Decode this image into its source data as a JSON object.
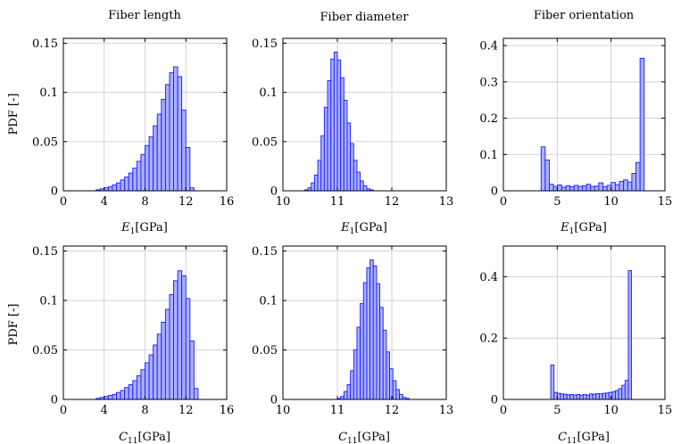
{
  "column_titles": [
    "Fiber length",
    "Fiber diameter",
    "Fiber orientation"
  ],
  "ylabel": "PDF [-]",
  "xlabel_top": {
    "symbol": "E",
    "sub": "1",
    "unit": "[GPa]"
  },
  "xlabel_bottom": {
    "symbol": "C",
    "sub": "11",
    "unit": "[GPa]"
  },
  "colors": {
    "bar_fill": "#aab0ff",
    "bar_edge": "#1a1aff",
    "grid": "#c8c8c8",
    "axis": "#000000"
  },
  "chart_data": [
    {
      "id": "length-E1",
      "type": "bar",
      "title": "Fiber length",
      "xlabel": "E1 [GPa]",
      "ylabel": "PDF [-]",
      "xlim": [
        0,
        16
      ],
      "ylim": [
        0,
        0.155
      ],
      "xticks": [
        0,
        4,
        8,
        12,
        16
      ],
      "yticks": [
        0,
        0.05,
        0.1,
        0.15
      ],
      "xtick_labels": [
        "0",
        "4",
        "8",
        "12",
        "16"
      ],
      "ytick_labels": [
        "0",
        "0.05",
        "0.1",
        "0.15"
      ],
      "bin_start": 3.2,
      "bin_width": 0.4,
      "values": [
        0.001,
        0.002,
        0.003,
        0.004,
        0.006,
        0.008,
        0.011,
        0.014,
        0.018,
        0.023,
        0.03,
        0.037,
        0.046,
        0.055,
        0.066,
        0.078,
        0.093,
        0.108,
        0.12,
        0.126,
        0.116,
        0.082,
        0.044,
        0.003
      ],
      "grid": true
    },
    {
      "id": "diameter-E1",
      "type": "bar",
      "title": "Fiber diameter",
      "xlabel": "E1 [GPa]",
      "ylabel": "",
      "xlim": [
        10,
        13
      ],
      "ylim": [
        0,
        0.155
      ],
      "xticks": [
        10,
        11,
        12,
        13
      ],
      "yticks": [
        0,
        0.05,
        0.1,
        0.15
      ],
      "xtick_labels": [
        "10",
        "11",
        "12",
        "13"
      ],
      "ytick_labels": [
        "0",
        "0.05",
        "0.1",
        "0.15"
      ],
      "bin_start": 10.4,
      "bin_width": 0.06,
      "values": [
        0.001,
        0.003,
        0.008,
        0.016,
        0.031,
        0.056,
        0.085,
        0.112,
        0.134,
        0.141,
        0.133,
        0.115,
        0.092,
        0.069,
        0.048,
        0.031,
        0.019,
        0.01,
        0.005,
        0.002,
        0.001
      ],
      "grid": true
    },
    {
      "id": "orientation-E1",
      "type": "bar",
      "title": "Fiber orientation",
      "xlabel": "E1 [GPa]",
      "ylabel": "",
      "xlim": [
        0,
        15
      ],
      "ylim": [
        0,
        0.42
      ],
      "xticks": [
        0,
        5,
        10,
        15
      ],
      "yticks": [
        0,
        0.1,
        0.2,
        0.3,
        0.4
      ],
      "xtick_labels": [
        "0",
        "5",
        "10",
        "15"
      ],
      "ytick_labels": [
        "0",
        "0.1",
        "0.2",
        "0.3",
        "0.4"
      ],
      "bin_start": 3.5,
      "bin_width": 0.383,
      "values": [
        0.121,
        0.085,
        0.018,
        0.012,
        0.016,
        0.01,
        0.014,
        0.011,
        0.015,
        0.012,
        0.014,
        0.018,
        0.012,
        0.013,
        0.022,
        0.011,
        0.015,
        0.023,
        0.017,
        0.026,
        0.03,
        0.024,
        0.048,
        0.078,
        0.365
      ],
      "grid": true
    },
    {
      "id": "length-C11",
      "type": "bar",
      "title": "",
      "xlabel": "C11 [GPa]",
      "ylabel": "PDF [-]",
      "xlim": [
        0,
        16
      ],
      "ylim": [
        0,
        0.155
      ],
      "xticks": [
        0,
        4,
        8,
        12,
        16
      ],
      "yticks": [
        0,
        0.05,
        0.1,
        0.15
      ],
      "xtick_labels": [
        "0",
        "4",
        "8",
        "12",
        "16"
      ],
      "ytick_labels": [
        "0",
        "0.05",
        "0.1",
        "0.15"
      ],
      "bin_start": 3.2,
      "bin_width": 0.4,
      "values": [
        0.001,
        0.002,
        0.003,
        0.004,
        0.005,
        0.007,
        0.009,
        0.012,
        0.015,
        0.019,
        0.024,
        0.03,
        0.037,
        0.045,
        0.055,
        0.066,
        0.078,
        0.091,
        0.106,
        0.12,
        0.13,
        0.125,
        0.102,
        0.059,
        0.011
      ],
      "grid": true
    },
    {
      "id": "diameter-C11",
      "type": "bar",
      "title": "",
      "xlabel": "C11 [GPa]",
      "ylabel": "",
      "xlim": [
        10,
        13
      ],
      "ylim": [
        0,
        0.155
      ],
      "xticks": [
        10,
        11,
        12,
        13
      ],
      "yticks": [
        0,
        0.05,
        0.1,
        0.15
      ],
      "xtick_labels": [
        "10",
        "11",
        "12",
        "13"
      ],
      "ytick_labels": [
        "0",
        "0.05",
        "0.1",
        "0.15"
      ],
      "bin_start": 11.0,
      "bin_width": 0.06,
      "values": [
        0.001,
        0.003,
        0.008,
        0.015,
        0.029,
        0.05,
        0.073,
        0.097,
        0.118,
        0.133,
        0.141,
        0.135,
        0.117,
        0.093,
        0.07,
        0.048,
        0.031,
        0.019,
        0.01,
        0.005,
        0.002,
        0.001
      ],
      "grid": true
    },
    {
      "id": "orientation-C11",
      "type": "bar",
      "title": "",
      "xlabel": "C11 [GPa]",
      "ylabel": "",
      "xlim": [
        0,
        15
      ],
      "ylim": [
        0,
        0.5
      ],
      "xticks": [
        0,
        5,
        10,
        15
      ],
      "yticks": [
        0,
        0.2,
        0.4
      ],
      "xtick_labels": [
        "0",
        "5",
        "10",
        "15"
      ],
      "ytick_labels": [
        "0",
        "0.2",
        "0.4"
      ],
      "bin_start": 4.4,
      "bin_width": 0.3,
      "values": [
        0.112,
        0.023,
        0.02,
        0.018,
        0.017,
        0.015,
        0.016,
        0.014,
        0.016,
        0.014,
        0.016,
        0.014,
        0.018,
        0.017,
        0.019,
        0.018,
        0.02,
        0.021,
        0.023,
        0.025,
        0.029,
        0.035,
        0.046,
        0.062,
        0.42
      ],
      "grid": true
    }
  ]
}
